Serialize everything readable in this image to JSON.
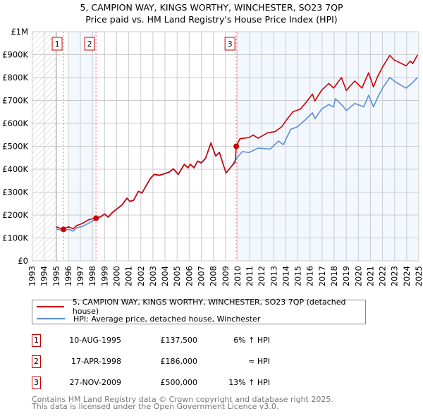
{
  "chart_data": {
    "type": "line",
    "title": "5, CAMPION WAY, KINGS WORTHY, WINCHESTER, SO23 7QP",
    "subtitle": "Price paid vs. HM Land Registry's House Price Index (HPI)",
    "xlabel": "",
    "ylabel": "",
    "xlim": [
      1993,
      2025
    ],
    "ylim": [
      0,
      1000000
    ],
    "x_ticks": [
      "1993",
      "1994",
      "1995",
      "1996",
      "1997",
      "1998",
      "1999",
      "2000",
      "2001",
      "2002",
      "2003",
      "2004",
      "2005",
      "2006",
      "2007",
      "2008",
      "2009",
      "2010",
      "2011",
      "2012",
      "2013",
      "2014",
      "2015",
      "2016",
      "2017",
      "2018",
      "2019",
      "2020",
      "2021",
      "2022",
      "2023",
      "2024",
      "2025"
    ],
    "y_ticks": [
      {
        "v": 0,
        "label": "£0"
      },
      {
        "v": 100000,
        "label": "£100K"
      },
      {
        "v": 200000,
        "label": "£200K"
      },
      {
        "v": 300000,
        "label": "£300K"
      },
      {
        "v": 400000,
        "label": "£400K"
      },
      {
        "v": 500000,
        "label": "£500K"
      },
      {
        "v": 600000,
        "label": "£600K"
      },
      {
        "v": 700000,
        "label": "£700K"
      },
      {
        "v": 800000,
        "label": "£800K"
      },
      {
        "v": 900000,
        "label": "£900K"
      },
      {
        "v": 1000000,
        "label": "£1M"
      }
    ],
    "grid": true,
    "series": [
      {
        "name": "5, CAMPION WAY, KINGS WORTHY, WINCHESTER, SO23 7QP (detached house)",
        "color": "#cc0000",
        "x": [
          1995.0,
          1995.55,
          1996.0,
          1996.4,
          1996.7,
          1997.15,
          1997.7,
          1998.2,
          1998.7,
          1999.0,
          1999.3,
          1999.7,
          2000.45,
          2000.85,
          2001.1,
          2001.4,
          2001.8,
          2002.1,
          2002.4,
          2002.8,
          2003.1,
          2003.55,
          2003.95,
          2004.35,
          2004.7,
          2005.1,
          2005.6,
          2005.9,
          2006.1,
          2006.4,
          2006.7,
          2007.0,
          2007.35,
          2007.8,
          2008.2,
          2008.5,
          2009.05,
          2009.5,
          2009.8,
          2009.9,
          2010.2,
          2010.95,
          2011.3,
          2011.7,
          2012.5,
          2013.1,
          2013.65,
          2014.05,
          2014.6,
          2015.2,
          2015.6,
          2016.2,
          2016.4,
          2016.95,
          2017.55,
          2017.95,
          2018.6,
          2019.0,
          2019.7,
          2020.3,
          2020.85,
          2021.25,
          2021.6,
          2022.0,
          2022.6,
          2022.95,
          2023.35,
          2023.95,
          2024.3,
          2024.5,
          2024.9
        ],
        "y": [
          149000,
          137500,
          149000,
          140000,
          154000,
          163000,
          180000,
          186000,
          194000,
          205000,
          192000,
          214000,
          245000,
          274000,
          260000,
          265000,
          304000,
          297000,
          325000,
          361000,
          378000,
          374000,
          381000,
          388000,
          402000,
          378000,
          422000,
          407000,
          422000,
          407000,
          436000,
          428000,
          448000,
          515000,
          458000,
          474000,
          384000,
          413000,
          430000,
          500000,
          533000,
          538000,
          549000,
          535000,
          559000,
          564000,
          585000,
          615000,
          651000,
          662000,
          687000,
          728000,
          698000,
          744000,
          774000,
          754000,
          800000,
          744000,
          785000,
          754000,
          821000,
          759000,
          805000,
          846000,
          897000,
          877000,
          867000,
          851000,
          872000,
          861000,
          899000
        ]
      },
      {
        "name": "HPI: Average price, detached house, Winchester",
        "color": "#5b8fd6",
        "x": [
          1995.0,
          1995.55,
          1996.0,
          1996.4,
          1996.7,
          1997.15,
          1997.7,
          1998.2,
          1998.7,
          1999.0,
          1999.3,
          1999.7,
          2000.45,
          2000.85,
          2001.1,
          2001.4,
          2001.8,
          2002.1,
          2002.4,
          2002.8,
          2003.1,
          2003.55,
          2003.95,
          2004.35,
          2004.7,
          2005.1,
          2005.6,
          2005.9,
          2006.1,
          2006.4,
          2006.7,
          2007.0,
          2007.35,
          2007.8,
          2008.2,
          2008.5,
          2009.05,
          2009.5,
          2009.8,
          2010.4,
          2010.95,
          2011.7,
          2012.7,
          2013.4,
          2013.8,
          2014.4,
          2014.95,
          2015.6,
          2016.2,
          2016.4,
          2016.95,
          2017.55,
          2017.95,
          2018.1,
          2018.7,
          2019.0,
          2019.7,
          2020.45,
          2020.85,
          2021.25,
          2021.6,
          2022.0,
          2022.6,
          2023.1,
          2023.95,
          2024.3,
          2024.9
        ],
        "y": [
          140000,
          130000,
          138000,
          130000,
          145000,
          150000,
          165000,
          180000,
          192000,
          203000,
          190000,
          212000,
          243000,
          272000,
          258000,
          263000,
          302000,
          295000,
          323000,
          359000,
          376000,
          372000,
          379000,
          386000,
          400000,
          376000,
          420000,
          405000,
          420000,
          405000,
          434000,
          426000,
          446000,
          512000,
          456000,
          472000,
          382000,
          411000,
          440000,
          477000,
          473000,
          492000,
          488000,
          523000,
          507000,
          574000,
          585000,
          615000,
          646000,
          620000,
          662000,
          682000,
          672000,
          708000,
          677000,
          656000,
          687000,
          672000,
          723000,
          672000,
          713000,
          754000,
          800000,
          780000,
          754000,
          769000,
          800000
        ]
      }
    ],
    "sales": [
      {
        "n": "1",
        "year": 1995.6,
        "value": 137500,
        "date": "10-AUG-1995",
        "price": "£137,500",
        "hpi": "6% ↑ HPI"
      },
      {
        "n": "2",
        "year": 1998.29,
        "value": 186000,
        "date": "17-APR-1998",
        "price": "£186,000",
        "hpi": "≈ HPI"
      },
      {
        "n": "3",
        "year": 2009.9,
        "value": 500000,
        "date": "27-NOV-2009",
        "price": "£500,000",
        "hpi": "13% ↑ HPI"
      }
    ],
    "shaded_periods": [
      [
        1996.0,
        1998.29
      ],
      [
        2010.0,
        2025
      ]
    ],
    "hatched_period": [
      1993,
      1995
    ],
    "legend": {
      "placement": "below",
      "entries": [
        "5, CAMPION WAY, KINGS WORTHY, WINCHESTER, SO23 7QP (detached house)",
        "HPI: Average price, detached house, Winchester"
      ]
    }
  },
  "footer": {
    "line1": "Contains HM Land Registry data © Crown copyright and database right 2025.",
    "line2": "This data is licensed under the Open Government Licence v3.0."
  }
}
